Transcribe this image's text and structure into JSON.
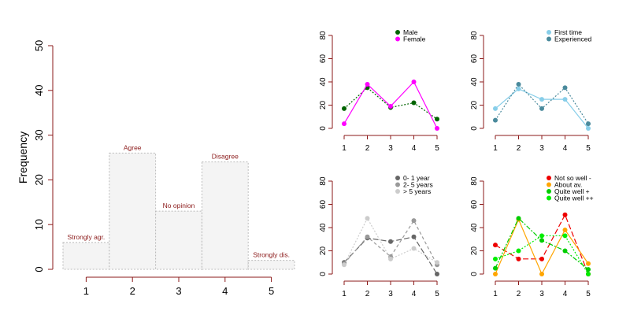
{
  "chart_data": [
    {
      "type": "bar",
      "title": "",
      "xlabel": "",
      "ylabel": "Frequency",
      "categories": [
        "1",
        "2",
        "3",
        "4",
        "5"
      ],
      "values": [
        6,
        26,
        13,
        24,
        2
      ],
      "bar_labels": [
        "Strongly agr.",
        "Agree",
        "No opinion",
        "Disagree",
        "Strongly dis."
      ],
      "ylim": [
        0,
        50
      ],
      "yticks": [
        0,
        10,
        20,
        30,
        40,
        50
      ],
      "grid": false,
      "colors": {
        "fill": "#f4f4f4",
        "border": "#bbbbbb",
        "label": "#8b1a1a",
        "axis": "#8b1a1a"
      }
    },
    {
      "type": "line",
      "title": "",
      "x": [
        1,
        2,
        3,
        4,
        5
      ],
      "ylim": [
        0,
        80
      ],
      "yticks": [
        0,
        20,
        40,
        60,
        80
      ],
      "legend_position": "top-right",
      "series": [
        {
          "name": "Male",
          "values": [
            17,
            35,
            18,
            22,
            8
          ],
          "color": "#006400",
          "dash": "dotted"
        },
        {
          "name": "Female",
          "values": [
            4,
            38,
            19,
            40,
            0
          ],
          "color": "#ff00ff",
          "dash": "solid"
        }
      ]
    },
    {
      "type": "line",
      "title": "",
      "x": [
        1,
        2,
        3,
        4,
        5
      ],
      "ylim": [
        0,
        80
      ],
      "yticks": [
        0,
        20,
        40,
        60,
        80
      ],
      "legend_position": "top-right",
      "series": [
        {
          "name": "First time",
          "values": [
            17,
            34,
            25,
            25,
            0
          ],
          "color": "#87cee9",
          "dash": "solid"
        },
        {
          "name": "Experienced",
          "values": [
            7,
            38,
            17,
            35,
            4
          ],
          "color": "#4a8a9c",
          "dash": "dotted"
        }
      ]
    },
    {
      "type": "line",
      "title": "",
      "x": [
        1,
        2,
        3,
        4,
        5
      ],
      "ylim": [
        0,
        80
      ],
      "yticks": [
        0,
        20,
        40,
        60,
        80
      ],
      "legend_position": "top-right",
      "series": [
        {
          "name": "0- 1 year",
          "values": [
            10,
            31,
            28,
            32,
            0
          ],
          "color": "#666666",
          "dash": "longdash"
        },
        {
          "name": "2- 5 years",
          "values": [
            9,
            32,
            15,
            46,
            8
          ],
          "color": "#999999",
          "dash": "dashed"
        },
        {
          "name": "> 5 years",
          "values": [
            8,
            48,
            13,
            22,
            10
          ],
          "color": "#cccccc",
          "dash": "dotted"
        }
      ]
    },
    {
      "type": "line",
      "title": "",
      "x": [
        1,
        2,
        3,
        4,
        5
      ],
      "ylim": [
        0,
        80
      ],
      "yticks": [
        0,
        20,
        40,
        60,
        80
      ],
      "legend_position": "top-right",
      "series": [
        {
          "name": "Not so well -",
          "values": [
            25,
            13,
            13,
            51,
            0
          ],
          "color": "#ee0000",
          "dash": "longdash"
        },
        {
          "name": "About av.",
          "values": [
            0,
            47,
            0,
            38,
            9
          ],
          "color": "#ffa500",
          "dash": "solid"
        },
        {
          "name": "Quite well +",
          "values": [
            5,
            48,
            29,
            20,
            4
          ],
          "color": "#00cd00",
          "dash": "dashdot"
        },
        {
          "name": "Quite well ++",
          "values": [
            13,
            20,
            33,
            33,
            0
          ],
          "color": "#00ee00",
          "dash": "dotted"
        }
      ]
    }
  ]
}
